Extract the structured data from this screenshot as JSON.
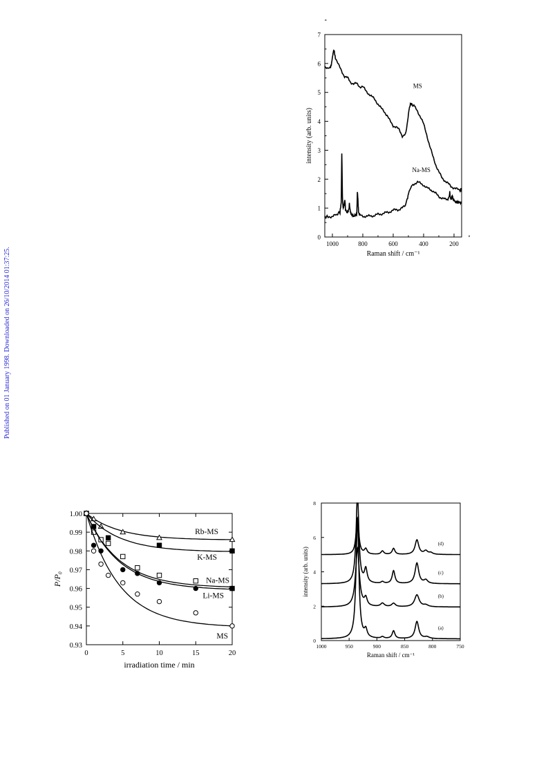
{
  "watermark": "Published on 01 January 1998. Downloaded on 26/10/2014 01:37:25.",
  "chart_data": [
    {
      "id": "raman-ms",
      "type": "line",
      "xlabel": "Raman shift / cm⁻¹",
      "ylabel": "intensity (arb. units)",
      "xlim": [
        1050,
        150
      ],
      "ylim": [
        0,
        7
      ],
      "xticks": [
        1000,
        800,
        600,
        400,
        200
      ],
      "yticks": [
        0,
        1,
        2,
        3,
        4,
        5,
        6,
        7
      ],
      "grid": false,
      "series": [
        {
          "name": "MS",
          "x": [
            1050,
            1030,
            1015,
            1005,
            995,
            990,
            980,
            960,
            940,
            920,
            900,
            880,
            860,
            840,
            820,
            800,
            780,
            760,
            740,
            720,
            700,
            680,
            660,
            640,
            620,
            600,
            580,
            560,
            540,
            520,
            505,
            495,
            485,
            475,
            460,
            440,
            420,
            400,
            380,
            360,
            340,
            320,
            300,
            280,
            260,
            240,
            220,
            200,
            180,
            160,
            150
          ],
          "y": [
            5.9,
            5.85,
            5.85,
            6.0,
            6.4,
            6.45,
            6.2,
            5.95,
            5.75,
            5.55,
            5.5,
            5.35,
            5.3,
            5.3,
            5.2,
            5.2,
            5.05,
            4.95,
            4.85,
            4.75,
            4.6,
            4.45,
            4.35,
            4.2,
            4.0,
            3.85,
            3.8,
            3.7,
            3.5,
            3.55,
            4.0,
            4.45,
            4.6,
            4.6,
            4.5,
            4.35,
            4.15,
            3.9,
            3.55,
            3.15,
            2.8,
            2.5,
            2.25,
            2.05,
            1.95,
            1.85,
            1.75,
            1.7,
            1.65,
            1.62,
            1.65
          ]
        },
        {
          "name": "Na-MS",
          "x": [
            1050,
            1020,
            1000,
            980,
            965,
            950,
            942,
            938,
            934,
            930,
            925,
            918,
            914,
            910,
            900,
            892,
            888,
            884,
            880,
            870,
            860,
            850,
            840,
            838,
            836,
            832,
            828,
            820,
            800,
            780,
            760,
            740,
            720,
            700,
            680,
            660,
            640,
            620,
            600,
            580,
            560,
            540,
            520,
            505,
            495,
            480,
            460,
            440,
            420,
            400,
            380,
            360,
            340,
            320,
            300,
            280,
            260,
            240,
            232,
            228,
            224,
            218,
            212,
            206,
            200,
            190,
            180,
            170,
            160,
            150
          ],
          "y": [
            0.7,
            0.7,
            0.72,
            0.75,
            0.8,
            0.85,
            1.2,
            2.9,
            1.4,
            1.0,
            1.05,
            1.3,
            0.95,
            0.9,
            0.85,
            0.95,
            1.15,
            0.95,
            0.85,
            0.75,
            0.72,
            0.75,
            0.8,
            1.0,
            1.6,
            1.3,
            0.85,
            0.75,
            0.72,
            0.72,
            0.72,
            0.73,
            0.75,
            0.78,
            0.8,
            0.82,
            0.85,
            0.88,
            0.92,
            0.95,
            0.95,
            1.0,
            1.1,
            1.35,
            1.6,
            1.75,
            1.85,
            1.9,
            1.85,
            1.8,
            1.7,
            1.65,
            1.6,
            1.5,
            1.4,
            1.35,
            1.3,
            1.3,
            1.4,
            1.55,
            1.35,
            1.3,
            1.45,
            1.3,
            1.25,
            1.22,
            1.2,
            1.2,
            1.2,
            1.18
          ]
        }
      ],
      "annotations": [
        "MS",
        "Na-MS"
      ]
    },
    {
      "id": "irradiation",
      "type": "scatter",
      "xlabel": "irradiation time / min",
      "ylabel": "P/P₀",
      "xlim": [
        0,
        20
      ],
      "ylim": [
        0.93,
        1.0
      ],
      "xticks": [
        0,
        5,
        10,
        15,
        20
      ],
      "yticks": [
        1.0,
        0.99,
        0.98,
        0.97,
        0.96,
        0.95,
        0.94,
        0.93
      ],
      "ytick_labels": [
        "1.00",
        "0.99",
        "0.98",
        "0.97",
        "0.96",
        "0.95",
        "0.94",
        "0.93"
      ],
      "grid": false,
      "series": [
        {
          "name": "Rb-MS",
          "marker": "open-triangle",
          "x": [
            0,
            1,
            2,
            5,
            10,
            20
          ],
          "y": [
            1.0,
            0.997,
            0.993,
            0.99,
            0.987,
            0.986
          ],
          "fit_end": 0.986
        },
        {
          "name": "K-MS",
          "marker": "filled-square",
          "x": [
            0,
            1,
            3,
            10,
            20
          ],
          "y": [
            1.0,
            0.993,
            0.987,
            0.983,
            0.98
          ],
          "fit_end": 0.9797
        },
        {
          "name": "Na-MS",
          "marker": "open-square",
          "x": [
            0,
            1,
            2,
            3,
            5,
            7,
            10,
            15,
            20
          ],
          "y": [
            1.0,
            0.99,
            0.986,
            0.984,
            0.977,
            0.971,
            0.967,
            0.964,
            0.96
          ],
          "fit_end": 0.9608
        },
        {
          "name": "Li-MS",
          "marker": "filled-circle",
          "x": [
            0,
            1,
            2,
            5,
            7,
            10,
            15,
            20
          ],
          "y": [
            1.0,
            0.983,
            0.98,
            0.97,
            0.968,
            0.963,
            0.96,
            0.96
          ],
          "fit_end": 0.9596
        },
        {
          "name": "MS",
          "marker": "open-circle",
          "x": [
            0,
            1,
            2,
            3,
            5,
            7,
            10,
            15,
            20
          ],
          "y": [
            1.0,
            0.98,
            0.973,
            0.967,
            0.963,
            0.957,
            0.953,
            0.947,
            0.94
          ],
          "fit_end": 0.94
        }
      ]
    },
    {
      "id": "raman-series",
      "type": "line",
      "xlabel": "Raman shift / cm⁻¹",
      "ylabel": "intensity (arb. units)",
      "xlim": [
        1000,
        750
      ],
      "ylim": [
        0,
        8
      ],
      "xticks": [
        1000,
        950,
        900,
        850,
        800,
        750
      ],
      "yticks": [
        0,
        2,
        4,
        6,
        8
      ],
      "grid": false,
      "series": [
        {
          "name": "(a)",
          "baseline": 0.1,
          "peaks": [
            [
              935,
              7.0,
              3
            ],
            [
              920,
              0.45,
              3
            ],
            [
              890,
              0.1,
              3
            ],
            [
              870,
              0.45,
              3
            ],
            [
              828,
              1.0,
              4
            ],
            [
              810,
              0.1,
              5
            ]
          ]
        },
        {
          "name": "(b)",
          "baseline": 1.95,
          "peaks": [
            [
              935,
              3.4,
              4
            ],
            [
              920,
              0.45,
              3
            ],
            [
              890,
              0.2,
              4
            ],
            [
              870,
              0.2,
              4
            ],
            [
              828,
              0.7,
              5
            ],
            [
              812,
              0.1,
              5
            ]
          ]
        },
        {
          "name": "(c)",
          "baseline": 3.3,
          "peaks": [
            [
              935,
              5.2,
              3
            ],
            [
              920,
              0.8,
              3
            ],
            [
              890,
              0.1,
              3
            ],
            [
              870,
              0.75,
              3
            ],
            [
              828,
              1.2,
              4
            ],
            [
              812,
              0.2,
              4
            ]
          ]
        },
        {
          "name": "(d)",
          "baseline": 5.0,
          "peaks": [
            [
              935,
              2.1,
              3
            ],
            [
              920,
              0.3,
              3
            ],
            [
              890,
              0.2,
              3
            ],
            [
              870,
              0.35,
              3
            ],
            [
              828,
              0.85,
              4
            ],
            [
              812,
              0.2,
              4
            ],
            [
              803,
              0.1,
              4
            ]
          ]
        }
      ]
    }
  ]
}
